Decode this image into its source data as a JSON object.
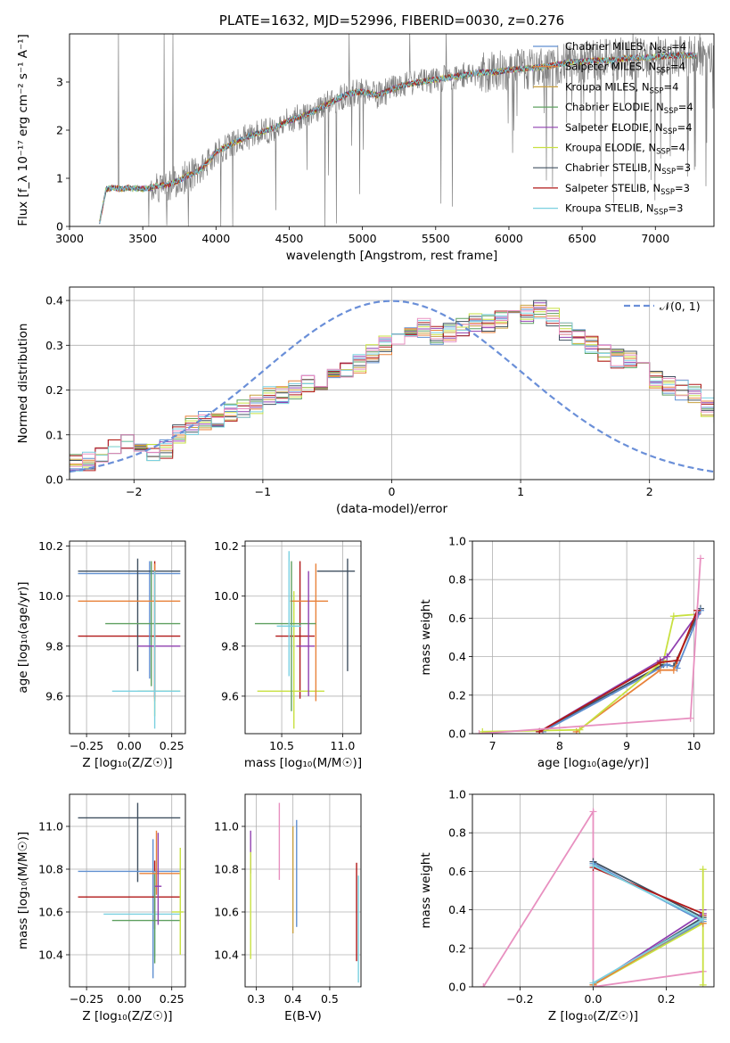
{
  "colors": {
    "data": "#808080",
    "grid": "#b0b0b0",
    "gauss": "#6a8fd8"
  },
  "chart_data": [
    {
      "id": "spectrum",
      "type": "line",
      "title": "PLATE=1632, MJD=52996, FIBERID=0030, z=0.276",
      "xlabel": "wavelength [Angstrom, rest frame]",
      "ylabel": "Flux [f_λ 10⁻¹⁷ erg cm⁻² s⁻¹ A⁻¹]",
      "xlim": [
        3000,
        7400
      ],
      "ylim": [
        0,
        4
      ],
      "xticks": [
        "3000",
        "3500",
        "4000",
        "4500",
        "5000",
        "5500",
        "6000",
        "6500",
        "7000"
      ],
      "yticks": [
        "0",
        "1",
        "2",
        "3"
      ],
      "grid": false,
      "legend_position": "top-right",
      "data_spectrum": {
        "wavelength": [
          3200,
          3250,
          3300,
          3350,
          3400,
          3450,
          3500,
          3550,
          3600,
          3650,
          3700,
          3750,
          3800,
          3850,
          3900,
          3950,
          4000,
          4100,
          4200,
          4300,
          4400,
          4500,
          4600,
          4700,
          4800,
          4900,
          5000,
          5100,
          5200,
          5300,
          5400,
          5500,
          5600,
          5700,
          5800,
          5900,
          6000,
          6100,
          6200,
          6300,
          6400,
          6500,
          6600,
          6700,
          6800,
          6900,
          7000,
          7100,
          7200
        ],
        "flux": [
          0.0,
          0.78,
          0.8,
          0.78,
          0.8,
          0.79,
          0.78,
          0.8,
          0.85,
          0.85,
          0.9,
          0.95,
          1.05,
          1.1,
          1.2,
          1.35,
          1.55,
          1.7,
          1.85,
          1.95,
          2.05,
          2.2,
          2.3,
          2.45,
          2.6,
          2.75,
          2.8,
          2.72,
          2.85,
          2.95,
          3.0,
          3.05,
          3.1,
          3.15,
          3.2,
          3.2,
          3.25,
          3.28,
          3.3,
          3.35,
          3.4,
          3.42,
          3.45,
          3.45,
          3.5,
          3.5,
          3.52,
          3.55,
          3.55
        ]
      },
      "series": [
        {
          "name": "Chabrier MILES, N_SSP=4",
          "label_main": "Chabrier MILES, N",
          "label_sub": "SSP",
          "label_tail": "=4",
          "color": "#5f8fd0"
        },
        {
          "name": "Salpeter MILES, N_SSP=4",
          "label_main": "Salpeter MILES, N",
          "label_sub": "SSP",
          "label_tail": "=4",
          "color": "#e8823a"
        },
        {
          "name": "Kroupa MILES, N_SSP=4",
          "label_main": "Kroupa MILES, N",
          "label_sub": "SSP",
          "label_tail": "=4",
          "color": "#c8a040"
        },
        {
          "name": "Chabrier ELODIE, N_SSP=4",
          "label_main": "Chabrier ELODIE, N",
          "label_sub": "SSP",
          "label_tail": "=4",
          "color": "#5fa060"
        },
        {
          "name": "Salpeter ELODIE, N_SSP=4",
          "label_main": "Salpeter ELODIE, N",
          "label_sub": "SSP",
          "label_tail": "=4",
          "color": "#9040b0"
        },
        {
          "name": "Kroupa ELODIE, N_SSP=4",
          "label_main": "Kroupa ELODIE, N",
          "label_sub": "SSP",
          "label_tail": "=4",
          "color": "#c8e040"
        },
        {
          "name": "Chabrier STELIB, N_SSP=3",
          "label_main": "Chabrier STELIB, N",
          "label_sub": "SSP",
          "label_tail": "=3",
          "color": "#405060"
        },
        {
          "name": "Salpeter STELIB, N_SSP=3",
          "label_main": "Salpeter STELIB, N",
          "label_sub": "SSP",
          "label_tail": "=3",
          "color": "#b01818"
        },
        {
          "name": "Kroupa STELIB, N_SSP=3",
          "label_main": "Kroupa STELIB, N",
          "label_sub": "SSP",
          "label_tail": "=3",
          "color": "#7ad0e0"
        }
      ]
    },
    {
      "id": "residuals",
      "type": "line",
      "xlabel": "(data-model)/error",
      "ylabel": "Normed distribution",
      "xlim": [
        -2.5,
        2.5
      ],
      "ylim": [
        0,
        0.43
      ],
      "xticks": [
        "−2",
        "−1",
        "0",
        "1",
        "2"
      ],
      "yticks": [
        "0.0",
        "0.1",
        "0.2",
        "0.3",
        "0.4"
      ],
      "grid": true,
      "legend_label": "𝒩(0, 1)",
      "legend_position": "top-right",
      "hist_edges_from": -2.5,
      "hist_bin_width": 0.1,
      "hist_counts": [
        0.04,
        0.04,
        0.05,
        0.07,
        0.08,
        0.07,
        0.06,
        0.07,
        0.1,
        0.12,
        0.13,
        0.13,
        0.15,
        0.16,
        0.17,
        0.19,
        0.19,
        0.2,
        0.21,
        0.22,
        0.23,
        0.25,
        0.26,
        0.28,
        0.3,
        0.32,
        0.33,
        0.34,
        0.32,
        0.33,
        0.34,
        0.35,
        0.35,
        0.36,
        0.37,
        0.37,
        0.38,
        0.36,
        0.33,
        0.32,
        0.3,
        0.28,
        0.27,
        0.27,
        0.25,
        0.22,
        0.21,
        0.2,
        0.19,
        0.16,
        0.15,
        0.14,
        0.13,
        0.12,
        0.1,
        0.09,
        0.08,
        0.07,
        0.06,
        0.05,
        0.05,
        0.05,
        0.04,
        0.04,
        0.05,
        0.05,
        0.06,
        0.05,
        0.05,
        0.05
      ],
      "gauss_mean": 0,
      "gauss_sigma": 1
    },
    {
      "id": "age-vs-Z",
      "type": "scatter",
      "xlabel": "Z [log₁₀(Z/Z☉)]",
      "ylabel": "age  [log₁₀(age/yr)]",
      "xlim": [
        -0.35,
        0.33
      ],
      "ylim": [
        9.45,
        10.22
      ],
      "xticks": [
        "−0.25",
        "0.00",
        "0.25"
      ],
      "yticks": [
        "9.6",
        "9.8",
        "10.0",
        "10.2"
      ],
      "grid": true,
      "points": [
        {
          "x": 0.15,
          "y": 9.84,
          "xerr": [
            0.45,
            0.15
          ],
          "yerr": [
            0.25,
            0.3
          ],
          "c": 7
        },
        {
          "x": 0.15,
          "y": 9.62,
          "xerr": [
            0.1,
            0.15
          ],
          "yerr": [
            0.1,
            0.45
          ],
          "c": 5
        },
        {
          "x": 0.12,
          "y": 10.09,
          "xerr": [
            0.42,
            0.18
          ],
          "yerr": [
            0.42,
            0.05
          ],
          "c": 0
        },
        {
          "x": 0.05,
          "y": 10.1,
          "xerr": [
            0.35,
            0.25
          ],
          "yerr": [
            0.4,
            0.05
          ],
          "c": 6
        },
        {
          "x": 0.13,
          "y": 9.89,
          "xerr": [
            0.27,
            0.17
          ],
          "yerr": [
            0.25,
            0.25
          ],
          "c": 3
        },
        {
          "x": 0.15,
          "y": 9.8,
          "xerr": [
            0.1,
            0.15
          ],
          "yerr": [
            0.2,
            0.3
          ],
          "c": 4
        },
        {
          "x": 0.15,
          "y": 9.98,
          "xerr": [
            0.45,
            0.15
          ],
          "yerr": [
            0.4,
            0.15
          ],
          "c": 1
        },
        {
          "x": 0.15,
          "y": 9.62,
          "xerr": [
            0.25,
            0.15
          ],
          "yerr": [
            0.15,
            0.48
          ],
          "c": 8
        }
      ]
    },
    {
      "id": "age-vs-mass",
      "type": "scatter",
      "xlabel": "mass [log₁₀(M/M☉)]",
      "ylabel": "",
      "xlim": [
        10.2,
        11.15
      ],
      "ylim": [
        9.45,
        10.22
      ],
      "xticks": [
        "10.5",
        "11.0"
      ],
      "yticks": [
        "9.6",
        "9.8",
        "10.0",
        "10.2"
      ],
      "grid": true,
      "points": [
        {
          "x": 10.65,
          "y": 9.84,
          "xerr": [
            0.2,
            0.12
          ],
          "yerr": [
            0.25,
            0.3
          ],
          "c": 7
        },
        {
          "x": 10.6,
          "y": 9.62,
          "xerr": [
            0.3,
            0.25
          ],
          "yerr": [
            0.15,
            0.4
          ],
          "c": 5
        },
        {
          "x": 10.78,
          "y": 9.98,
          "xerr": [
            0.21,
            0.1
          ],
          "yerr": [
            0.4,
            0.15
          ],
          "c": 1
        },
        {
          "x": 10.58,
          "y": 9.89,
          "xerr": [
            0.3,
            0.2
          ],
          "yerr": [
            0.35,
            0.25
          ],
          "c": 3
        },
        {
          "x": 11.04,
          "y": 10.1,
          "xerr": [
            0.25,
            0.06
          ],
          "yerr": [
            0.4,
            0.05
          ],
          "c": 6
        },
        {
          "x": 10.72,
          "y": 9.8,
          "xerr": [
            0.1,
            0.05
          ],
          "yerr": [
            0.2,
            0.3
          ],
          "c": 4
        },
        {
          "x": 10.56,
          "y": 9.88,
          "xerr": [
            0.1,
            0.1
          ],
          "yerr": [
            0.2,
            0.3
          ],
          "c": 8
        }
      ]
    },
    {
      "id": "weight-vs-age",
      "type": "line",
      "xlabel": "age  [log₁₀(age/yr)]",
      "ylabel": "mass weight",
      "xlim": [
        6.7,
        10.3
      ],
      "ylim": [
        0,
        1.0
      ],
      "xticks": [
        "7",
        "8",
        "9",
        "10"
      ],
      "yticks": [
        "0.0",
        "0.2",
        "0.4",
        "0.6",
        "0.8",
        "1.0"
      ],
      "grid": true,
      "lines": [
        {
          "c": 6,
          "pts": [
            [
              7.7,
              0.01
            ],
            [
              9.55,
              0.36
            ],
            [
              9.7,
              0.35
            ],
            [
              10.1,
              0.65
            ]
          ]
        },
        {
          "c": 0,
          "pts": [
            [
              7.75,
              0.01
            ],
            [
              9.6,
              0.36
            ],
            [
              9.75,
              0.34
            ],
            [
              10.1,
              0.64
            ]
          ]
        },
        {
          "c": 1,
          "pts": [
            [
              8.25,
              0.01
            ],
            [
              9.5,
              0.33
            ],
            [
              9.7,
              0.33
            ],
            [
              10.05,
              0.64
            ]
          ]
        },
        {
          "c": 5,
          "pts": [
            [
              6.85,
              0.01
            ],
            [
              8.3,
              0.02
            ],
            [
              9.55,
              0.38
            ],
            [
              9.7,
              0.61
            ],
            [
              10.05,
              0.62
            ]
          ]
        },
        {
          "c": 4,
          "pts": [
            [
              7.7,
              0.01
            ],
            [
              9.5,
              0.38
            ],
            [
              9.6,
              0.4
            ],
            [
              10.05,
              0.62
            ]
          ]
        },
        {
          "c": 7,
          "pts": [
            [
              7.7,
              0.01
            ],
            [
              9.5,
              0.37
            ],
            [
              9.75,
              0.38
            ],
            [
              10.05,
              0.64
            ]
          ]
        },
        {
          "c": 9,
          "pts": [
            [
              6.8,
              0.0
            ],
            [
              9.95,
              0.08
            ],
            [
              10.1,
              0.91
            ]
          ]
        }
      ]
    },
    {
      "id": "mass-vs-Z",
      "type": "scatter",
      "xlabel": "Z [log₁₀(Z/Z☉)]",
      "ylabel": "mass [log₁₀(M/M☉)]",
      "xlim": [
        -0.35,
        0.33
      ],
      "ylim": [
        10.25,
        11.15
      ],
      "xticks": [
        "−0.25",
        "0.00",
        "0.25"
      ],
      "yticks": [
        "10.4",
        "10.6",
        "10.8",
        "11.0"
      ],
      "grid": true,
      "points": [
        {
          "x": 0.05,
          "y": 11.04,
          "xerr": [
            0.35,
            0.25
          ],
          "yerr": [
            0.3,
            0.07
          ],
          "c": 6
        },
        {
          "x": 0.14,
          "y": 10.79,
          "xerr": [
            0.44,
            0.16
          ],
          "yerr": [
            0.5,
            0.15
          ],
          "c": 0
        },
        {
          "x": 0.15,
          "y": 10.67,
          "xerr": [
            0.45,
            0.15
          ],
          "yerr": [
            0.15,
            0.17
          ],
          "c": 7
        },
        {
          "x": 0.15,
          "y": 10.59,
          "xerr": [
            0.3,
            0.15
          ],
          "yerr": [
            0.2,
            0.2
          ],
          "c": 8
        },
        {
          "x": 0.15,
          "y": 10.56,
          "xerr": [
            0.25,
            0.15
          ],
          "yerr": [
            0.2,
            0.22
          ],
          "c": 3
        },
        {
          "x": 0.16,
          "y": 10.78,
          "xerr": [
            0.1,
            0.14
          ],
          "yerr": [
            0.1,
            0.2
          ],
          "c": 1
        },
        {
          "x": 0.3,
          "y": 10.6,
          "xerr": [
            0.05,
            0.02
          ],
          "yerr": [
            0.2,
            0.3
          ],
          "c": 5
        },
        {
          "x": 0.17,
          "y": 10.72,
          "xerr": [
            0.02,
            0.02
          ],
          "yerr": [
            0.18,
            0.25
          ],
          "c": 4
        }
      ]
    },
    {
      "id": "mass-vs-EBV",
      "type": "scatter",
      "xlabel": "E(B-V)",
      "ylabel": "",
      "xlim": [
        0.27,
        0.585
      ],
      "ylim": [
        10.25,
        11.15
      ],
      "xticks": [
        "0.3",
        "0.4",
        "0.5"
      ],
      "yticks": [
        "10.4",
        "10.6",
        "10.8",
        "11.0"
      ],
      "grid": true,
      "points": [
        {
          "x": 0.285,
          "y": 10.88,
          "xerr": [
            0,
            0
          ],
          "yerr": [
            0.1,
            0.1
          ],
          "c": 4
        },
        {
          "x": 0.285,
          "y": 10.62,
          "xerr": [
            0,
            0
          ],
          "yerr": [
            0.24,
            0.26
          ],
          "c": 5
        },
        {
          "x": 0.363,
          "y": 10.93,
          "xerr": [
            0,
            0
          ],
          "yerr": [
            0.18,
            0.18
          ],
          "c": 9
        },
        {
          "x": 0.4,
          "y": 10.75,
          "xerr": [
            0,
            0
          ],
          "yerr": [
            0.25,
            0.25
          ],
          "c": 2
        },
        {
          "x": 0.41,
          "y": 10.78,
          "xerr": [
            0,
            0
          ],
          "yerr": [
            0.25,
            0.25
          ],
          "c": 0
        },
        {
          "x": 0.573,
          "y": 10.6,
          "xerr": [
            0,
            0
          ],
          "yerr": [
            0.23,
            0.23
          ],
          "c": 7
        },
        {
          "x": 0.578,
          "y": 10.52,
          "xerr": [
            0,
            0
          ],
          "yerr": [
            0.25,
            0.25
          ],
          "c": 8
        }
      ]
    },
    {
      "id": "weight-vs-Z",
      "type": "line",
      "xlabel": "Z [log₁₀(Z/Z☉)]",
      "ylabel": "mass weight",
      "xlim": [
        -0.33,
        0.33
      ],
      "ylim": [
        0,
        1.0
      ],
      "xticks": [
        "−0.2",
        "0.0",
        "0.2"
      ],
      "yticks": [
        "0.0",
        "0.2",
        "0.4",
        "0.6",
        "0.8",
        "1.0"
      ],
      "grid": true,
      "lines": [
        {
          "c": 9,
          "pts": [
            [
              -0.3,
              0.0
            ],
            [
              0.0,
              0.91
            ],
            [
              0.0,
              0.0
            ],
            [
              0.3,
              0.08
            ]
          ]
        },
        {
          "c": 6,
          "pts": [
            [
              0.0,
              0.65
            ],
            [
              0.3,
              0.36
            ],
            [
              0.0,
              0.01
            ]
          ]
        },
        {
          "c": 0,
          "pts": [
            [
              0.0,
              0.64
            ],
            [
              0.3,
              0.34
            ],
            [
              0.0,
              0.01
            ]
          ]
        },
        {
          "c": 7,
          "pts": [
            [
              0.0,
              0.62
            ],
            [
              0.3,
              0.38
            ],
            [
              0.3,
              0.37
            ]
          ]
        },
        {
          "c": 4,
          "pts": [
            [
              0.0,
              0.01
            ],
            [
              0.3,
              0.38
            ],
            [
              0.3,
              0.4
            ]
          ]
        },
        {
          "c": 5,
          "pts": [
            [
              0.0,
              0.01
            ],
            [
              0.3,
              0.33
            ],
            [
              0.3,
              0.61
            ],
            [
              0.3,
              0.01
            ]
          ]
        },
        {
          "c": 1,
          "pts": [
            [
              0.0,
              0.01
            ],
            [
              0.3,
              0.35
            ],
            [
              0.3,
              0.33
            ]
          ]
        },
        {
          "c": 8,
          "pts": [
            [
              0.0,
              0.63
            ],
            [
              0.3,
              0.35
            ],
            [
              0.0,
              0.02
            ]
          ]
        }
      ]
    }
  ]
}
